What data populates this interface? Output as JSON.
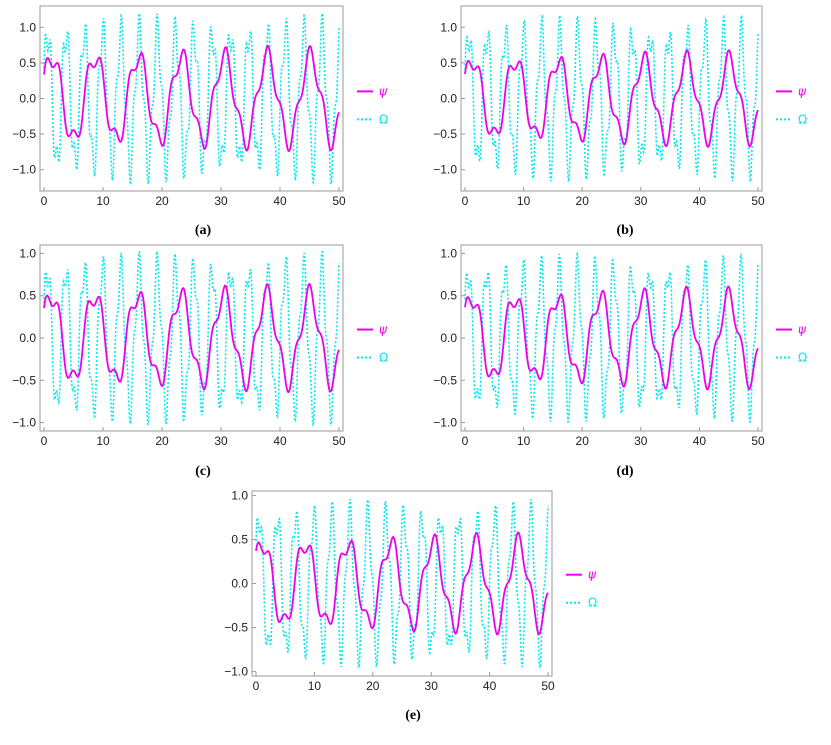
{
  "colors": {
    "psi": "#ee00ee",
    "omega": "#00e8ee",
    "frame": "#9a9a9a"
  },
  "chart_data": [
    {
      "type": "line",
      "caption": "(a)",
      "xlim": [
        0,
        50
      ],
      "ylim": [
        -1.3,
        1.3
      ],
      "xticks": [
        "0",
        "10",
        "20",
        "30",
        "40",
        "50"
      ],
      "yticks": [
        "-1.0",
        "-0.5",
        "0.0",
        "0.5",
        "1.0"
      ],
      "legend": [
        "ψ",
        "Ω"
      ],
      "series": [
        {
          "name": "ψ",
          "style": "solid",
          "amp": 0.74,
          "period": 7.3,
          "wiggle": 0.2,
          "phase": 0.4
        },
        {
          "name": "Ω",
          "style": "dotted",
          "amp": 1.2,
          "period": 3.1,
          "wiggle": 0.22,
          "phase": 0.3
        }
      ]
    },
    {
      "type": "line",
      "caption": "(b)",
      "xlim": [
        0,
        50
      ],
      "ylim": [
        -1.3,
        1.3
      ],
      "xticks": [
        "0",
        "10",
        "20",
        "30",
        "40",
        "50"
      ],
      "yticks": [
        "-1.0",
        "-0.5",
        "0.0",
        "0.5",
        "1.0"
      ],
      "legend": [
        "ψ",
        "Ω"
      ],
      "series": [
        {
          "name": "ψ",
          "style": "solid",
          "amp": 0.68,
          "period": 7.3,
          "wiggle": 0.2,
          "phase": 0.45
        },
        {
          "name": "Ω",
          "style": "dotted",
          "amp": 1.17,
          "period": 3.1,
          "wiggle": 0.22,
          "phase": 0.25
        }
      ]
    },
    {
      "type": "line",
      "caption": "(c)",
      "xlim": [
        0,
        50
      ],
      "ylim": [
        -1.1,
        1.1
      ],
      "xticks": [
        "0",
        "10",
        "20",
        "30",
        "40",
        "50"
      ],
      "yticks": [
        "-1.0",
        "-0.5",
        "0.0",
        "0.5",
        "1.0"
      ],
      "legend": [
        "ψ",
        "Ω"
      ],
      "series": [
        {
          "name": "ψ",
          "style": "solid",
          "amp": 0.64,
          "period": 7.3,
          "wiggle": 0.2,
          "phase": 0.5
        },
        {
          "name": "Ω",
          "style": "dotdash",
          "amp": 1.03,
          "period": 3.1,
          "wiggle": 0.2,
          "phase": 0.35
        }
      ]
    },
    {
      "type": "line",
      "caption": "(d)",
      "xlim": [
        0,
        50
      ],
      "ylim": [
        -1.1,
        1.1
      ],
      "xticks": [
        "0",
        "10",
        "20",
        "30",
        "40",
        "50"
      ],
      "yticks": [
        "-1.0",
        "-0.5",
        "0.0",
        "0.5",
        "1.0"
      ],
      "legend": [
        "ψ",
        "Ω"
      ],
      "series": [
        {
          "name": "ψ",
          "style": "solid",
          "amp": 0.61,
          "period": 7.3,
          "wiggle": 0.2,
          "phase": 0.55
        },
        {
          "name": "Ω",
          "style": "dotdash",
          "amp": 1.0,
          "period": 3.1,
          "wiggle": 0.2,
          "phase": 0.4
        }
      ]
    },
    {
      "type": "line",
      "caption": "(e)",
      "xlim": [
        0,
        50
      ],
      "ylim": [
        -1.05,
        1.05
      ],
      "xticks": [
        "0",
        "10",
        "20",
        "30",
        "40",
        "50"
      ],
      "yticks": [
        "-1.0",
        "-0.5",
        "0.0",
        "0.5",
        "1.0"
      ],
      "legend": [
        "ψ",
        "Ω"
      ],
      "series": [
        {
          "name": "ψ",
          "style": "solid",
          "amp": 0.58,
          "period": 7.3,
          "wiggle": 0.2,
          "phase": 0.6
        },
        {
          "name": "Ω",
          "style": "dotdash",
          "amp": 0.96,
          "period": 3.1,
          "wiggle": 0.2,
          "phase": 0.45
        }
      ]
    }
  ]
}
